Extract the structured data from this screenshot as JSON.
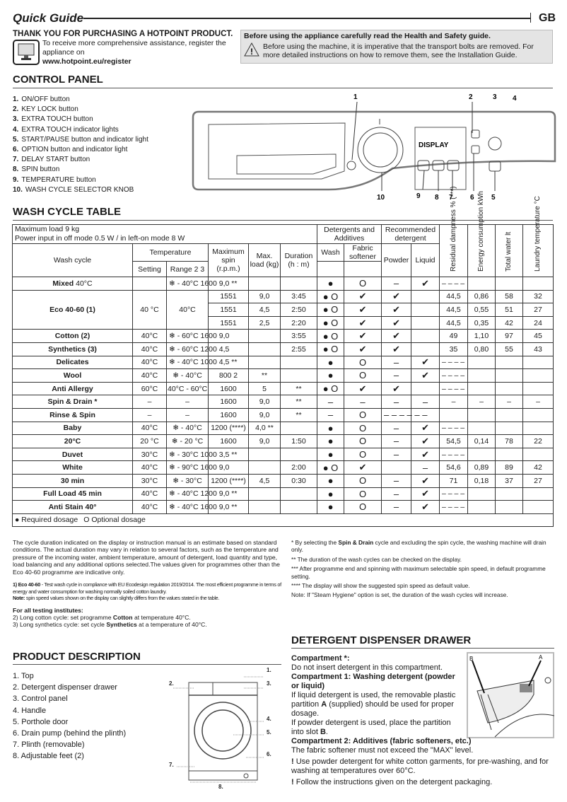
{
  "header": {
    "title": "Quick Guide",
    "lang": "GB"
  },
  "intro": {
    "thanks": "THANK YOU FOR PURCHASING A HOTPOINT PRODUCT.",
    "register_text": "To receive more comprehensive assistance, register the appliance on",
    "register_url": "www.hotpoint.eu/register",
    "safety_heading": "Before using the appliance carefully read the Health and Safety guide.",
    "safety_text": "Before using the machine, it is imperative that the transport bolts are removed. For more detailed instructions on how to remove them, see the Installation Guide."
  },
  "control_panel": {
    "title": "CONTROL PANEL",
    "items": [
      {
        "n": "1.",
        "label": "ON/OFF button"
      },
      {
        "n": "2.",
        "label": "KEY LOCK button"
      },
      {
        "n": "3.",
        "label": "EXTRA TOUCH button"
      },
      {
        "n": "4.",
        "label": "EXTRA TOUCH indicator lights"
      },
      {
        "n": "5.",
        "label": "START/PAUSE button and indicator light"
      },
      {
        "n": "6.",
        "label": "OPTION button and indicator light"
      },
      {
        "n": "7.",
        "label": "DELAY START button"
      },
      {
        "n": "8.",
        "label": "SPIN button"
      },
      {
        "n": "9.",
        "label": "TEMPERATURE button"
      },
      {
        "n": "10.",
        "label": "WASH CYCLE SELECTOR KNOB"
      }
    ],
    "diagram": {
      "display_label": "DISPLAY",
      "callouts": [
        "1",
        "2",
        "3",
        "4",
        "10",
        "9",
        "8",
        "7",
        "6",
        "5"
      ]
    }
  },
  "wash_table": {
    "title": "WASH CYCLE TABLE",
    "max_load": "Maximum load 9 kg",
    "power": "Power input in off  mode 0.5 W / in left-on mode 8 W",
    "headers": {
      "detergents": "Detergents and Additives",
      "recommended": "Recommended detergent",
      "residual": "Residual dampness % (***)",
      "energy": "Energy consumption kWh",
      "water": "Total water lt",
      "laundry_temp": "Laundry temperature °C",
      "wash_cycle": "Wash cycle",
      "temperature": "Temperature",
      "setting": "Setting",
      "range": "Range 2 3",
      "spin": "Maximum spin (r.p.m.)",
      "load": "Max. load (kg)",
      "duration": "Duration (h : m)",
      "wash": "Wash",
      "softener": "Fabric softener",
      "powder": "Powder",
      "liquid": "Liquid"
    },
    "rows": [
      {
        "name": "Mixed",
        "suffix": " 40°C",
        "cells": [
          "",
          "❄ - 40°C 1600 9,0 **",
          "",
          "",
          "",
          "●",
          "O",
          "–",
          "✔",
          "– – – –",
          "",
          "",
          ""
        ]
      },
      {
        "name": "Eco 40-60 (1)",
        "setting": "40 °C",
        "range": "40°C",
        "variants": [
          [
            "1551",
            "9,0",
            "3:45",
            "● O",
            "✔",
            "✔",
            "",
            "44,5",
            "0,86",
            "58",
            "32"
          ],
          [
            "1551",
            "4,5",
            "2:50",
            "● O",
            "✔",
            "✔",
            "",
            "44,5",
            "0,55",
            "51",
            "27"
          ],
          [
            "1551",
            "2,5",
            "2:20",
            "● O",
            "✔",
            "✔",
            "",
            "44,5",
            "0,35",
            "42",
            "24"
          ]
        ]
      },
      {
        "name": "Cotton (2)",
        "cells": [
          "40°C",
          "❄ - 60°C 1600 9,0",
          "",
          "",
          "3:55",
          "● O",
          "✔",
          "✔",
          "",
          "49",
          "1,10",
          "97",
          "45"
        ]
      },
      {
        "name": "Synthetics (3)",
        "cells": [
          "40°C",
          "❄ - 60°C 1200 4,5",
          "",
          "",
          "2:55",
          "● O",
          "✔",
          "✔",
          "",
          "35",
          "0,80",
          "55",
          "43"
        ]
      },
      {
        "name": "Delicates",
        "cells": [
          "40°C",
          "❄ - 40°C 1000 4,5 **",
          "",
          "",
          "",
          "●",
          "O",
          "–",
          "✔",
          "– – – –",
          "",
          "",
          ""
        ]
      },
      {
        "name": "Wool",
        "cells": [
          "40°C",
          "❄ - 40°C",
          "800 2",
          "**",
          "",
          "●",
          "O",
          "–",
          "✔",
          "– – – –",
          "",
          "",
          ""
        ]
      },
      {
        "name": "Anti Allergy",
        "cells": [
          "60°C",
          "40°C - 60°C",
          "1600",
          "5",
          "**",
          "● O",
          "✔",
          "✔",
          "",
          "– – – –",
          "",
          "",
          ""
        ]
      },
      {
        "name": "Spin & Drain *",
        "cells": [
          "–",
          "–",
          "1600",
          "9,0",
          "**",
          "–",
          "–",
          "–",
          "–",
          "–",
          "–",
          "–",
          "–"
        ]
      },
      {
        "name": "Rinse & Spin",
        "cells": [
          "–",
          "–",
          "1600",
          "9,0",
          "**",
          "–",
          "O",
          "– – – – – –",
          "",
          "",
          "",
          "",
          ""
        ]
      },
      {
        "name": "Baby",
        "cells": [
          "40°C",
          "❄ - 40°C",
          "1200 (****)",
          "4,0 **",
          "",
          "●",
          "O",
          "–",
          "✔",
          "– – – –",
          "",
          "",
          ""
        ]
      },
      {
        "name": "20°C",
        "cells": [
          "20 °C",
          "❄ - 20 °C",
          "1600",
          "9,0",
          "1:50",
          "●",
          "O",
          "–",
          "✔",
          "54,5",
          "0,14",
          "78",
          "22"
        ]
      },
      {
        "name": "Duvet",
        "cells": [
          "30°C",
          "❄ - 30°C 1000 3,5 **",
          "",
          "",
          "",
          "●",
          "O",
          "–",
          "✔",
          "– – – –",
          "",
          "",
          ""
        ]
      },
      {
        "name": "White",
        "cells": [
          "40°C",
          "❄ - 90°C 1600 9,0",
          "",
          "",
          "2:00",
          "● O",
          "✔",
          "",
          "–",
          "54,6",
          "0,89",
          "89",
          "42"
        ]
      },
      {
        "name": "30 min",
        "cells": [
          "30°C",
          "❄ - 30°C",
          "1200 (****)",
          "4,5",
          "0:30",
          "●",
          "O",
          "–",
          "✔",
          "71",
          "0,18",
          "37",
          "27"
        ]
      },
      {
        "name": "Full Load 45 min",
        "cells": [
          "40°C",
          "❄ - 40°C 1200 9,0 **",
          "",
          "",
          "",
          "●",
          "O",
          "–",
          "✔",
          "– – – –",
          "",
          "",
          ""
        ]
      },
      {
        "name": "Anti Stain 40°",
        "cells": [
          "40°C",
          "❄ - 40°C 1600 9,0 **",
          "",
          "",
          "",
          "●",
          "O",
          "–",
          "✔",
          "– – – –",
          "",
          "",
          ""
        ]
      }
    ],
    "legend": {
      "required": "● Required dosage",
      "optional": "O Optional dosage"
    }
  },
  "notes_left": {
    "duration": "The cycle duration indicated on the display or instruction manual is an estimate based on standard conditions. The actual duration may vary in relation to several factors, such as the temperature and pressure of the incoming water, ambient temperature, amount of detergent, load quantity and type, load balancing and any additional options selected.The values given for programmes other than the Eco 40-60 programme are indicative only.",
    "eco_label": "1) Eco 40-60",
    "eco_text": " - Test wash cycle in compliance with EU Ecodesign regulation 2019/2014. The most efficient programme in terms of energy and water consumption for washing normally soiled cotton laundry.",
    "note_label": "Note:",
    "note_text": " spin speed values shown on the display can slightly differs from the values stated in the table.",
    "institutes_title": "For all testing institutes:",
    "inst2_a": "2)  Long cotton cycle: set programme ",
    "inst2_b": "Cotton",
    "inst2_c": " at temperature 40°C.",
    "inst3_a": "3)  Long synthetics cycle: set cycle ",
    "inst3_b": "Synthetics",
    "inst3_c": " at a temperature of 40°C."
  },
  "notes_right": {
    "n1_a": "* By selecting the ",
    "n1_b": "Spin & Drain",
    "n1_c": " cycle and excluding the spin cycle, the washing machine will drain only.",
    "n2": "** The duration of the wash cycles can be checked on the display.",
    "n3": "*** After programme end and spinning with maximum selectable spin speed, in default programme setting.",
    "n4": "**** The display will show the suggested spin speed as default value.",
    "n5": "Note: If \"Steam Hygiene\" option is set, the duration of the wash cycles will increase."
  },
  "product_description": {
    "title": "PRODUCT DESCRIPTION",
    "items": [
      "1. Top",
      "2. Detergent dispenser drawer",
      "3. Control panel",
      "4. Handle",
      "5. Porthole door",
      "6. Drain pump (behind the plinth)",
      "7. Plinth (removable)",
      "8. Adjustable feet (2)"
    ],
    "callouts": [
      "1.",
      "2.",
      "3.",
      "4.",
      "5.",
      "6.",
      "7.",
      "8."
    ]
  },
  "detergent_drawer": {
    "title": "DETERGENT DISPENSER DRAWER",
    "c_star_title": "Compartment *:",
    "c_star_text": "Do not insert detergent in this compartment.",
    "c1_title": "Compartment 1: Washing detergent (powder or liquid)",
    "c1_text_a": "If liquid detergent is used, the removable plastic partition ",
    "c1_a": "A",
    "c1_text_b": " (supplied) should be used for proper dosage.",
    "c1_text_c": "If powder detergent is used, place the partition into slot ",
    "c1_b": "B",
    "c1_text_d": ".",
    "c2_title": "Compartment 2: Additives (fabric softeners, etc.)",
    "c2_text": "The fabric softener must not exceed the \"MAX\" level.",
    "warn1": "Use powder detergent for white cotton garments, for pre-washing, and for washing at temperatures over 60°C.",
    "warn2": "Follow the instructions given on the detergent packaging.",
    "image_labels": [
      "B",
      "A"
    ]
  }
}
